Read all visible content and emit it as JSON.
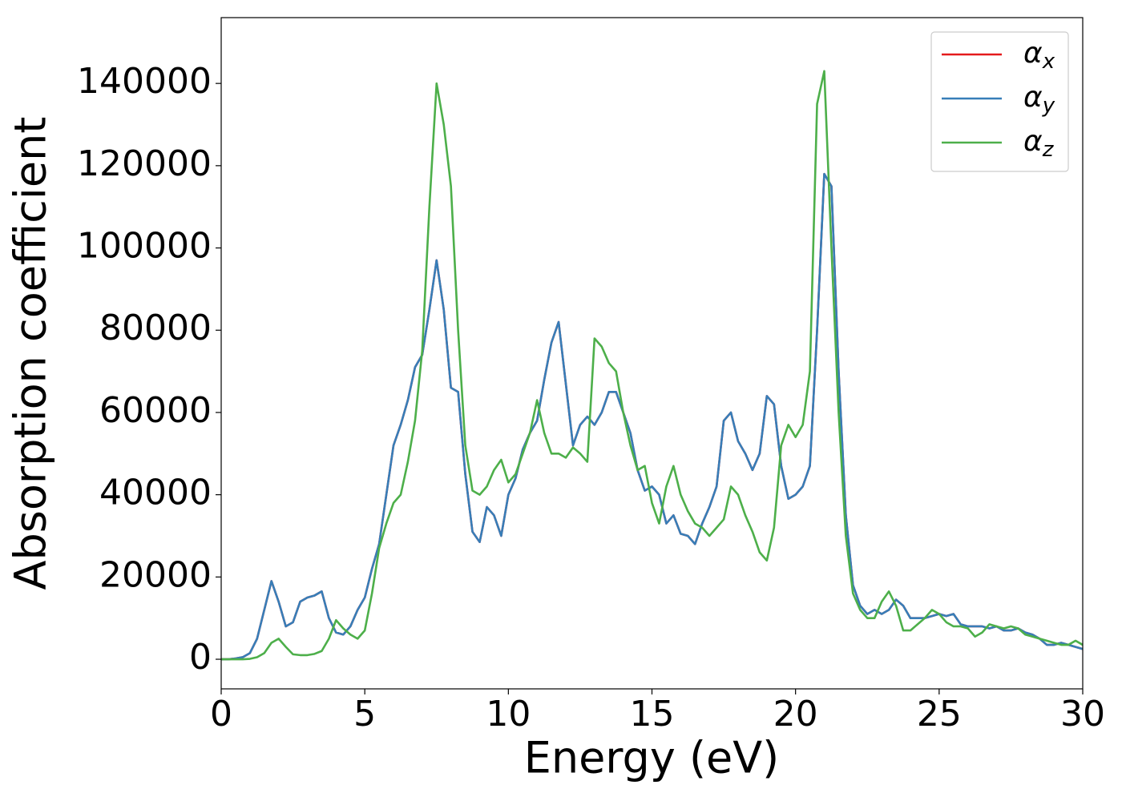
{
  "chart_data": {
    "type": "line",
    "xlabel": "Energy (eV)",
    "ylabel": "Absorption coefficient",
    "x": [
      0,
      0.25,
      0.5,
      0.75,
      1,
      1.25,
      1.5,
      1.75,
      2,
      2.25,
      2.5,
      2.75,
      3,
      3.25,
      3.5,
      3.75,
      4,
      4.25,
      4.5,
      4.75,
      5,
      5.25,
      5.5,
      5.75,
      6,
      6.25,
      6.5,
      6.75,
      7,
      7.25,
      7.5,
      7.75,
      8,
      8.25,
      8.5,
      8.75,
      9,
      9.25,
      9.5,
      9.75,
      10,
      10.25,
      10.5,
      10.75,
      11,
      11.25,
      11.5,
      11.75,
      12,
      12.25,
      12.5,
      12.75,
      13,
      13.25,
      13.5,
      13.75,
      14,
      14.25,
      14.5,
      14.75,
      15,
      15.25,
      15.5,
      15.75,
      16,
      16.25,
      16.5,
      16.75,
      17,
      17.25,
      17.5,
      17.75,
      18,
      18.25,
      18.5,
      18.75,
      19,
      19.25,
      19.5,
      19.75,
      20,
      20.25,
      20.5,
      20.75,
      21,
      21.25,
      21.5,
      21.75,
      22,
      22.25,
      22.5,
      22.75,
      23,
      23.25,
      23.5,
      23.75,
      24,
      24.25,
      24.5,
      24.75,
      25,
      25.25,
      25.5,
      25.75,
      26,
      26.25,
      26.5,
      26.75,
      27,
      27.25,
      27.5,
      27.75,
      28,
      28.25,
      28.5,
      28.75,
      29,
      29.25,
      29.5,
      29.75,
      30
    ],
    "series": [
      {
        "name": "αx",
        "color": "#e41a1c",
        "values": [
          0,
          0,
          200,
          500,
          1500,
          5000,
          12000,
          19000,
          14000,
          8000,
          9000,
          14000,
          15000,
          15500,
          16500,
          10000,
          6500,
          6000,
          8000,
          12000,
          15000,
          22000,
          28000,
          40000,
          52000,
          57000,
          63000,
          71000,
          74000,
          85000,
          97000,
          85000,
          66000,
          65000,
          45000,
          31000,
          28500,
          37000,
          35000,
          30000,
          40000,
          44000,
          51000,
          55000,
          58000,
          68000,
          77000,
          82000,
          67000,
          52000,
          57000,
          59000,
          57000,
          60000,
          65000,
          65000,
          60000,
          55000,
          46000,
          41000,
          42000,
          40000,
          33000,
          35000,
          30500,
          30000,
          28000,
          33000,
          37000,
          42000,
          58000,
          60000,
          53000,
          50000,
          46000,
          50000,
          64000,
          62000,
          47000,
          39000,
          40000,
          42000,
          47000,
          80000,
          118000,
          115000,
          70000,
          35000,
          18000,
          13000,
          11000,
          12000,
          11000,
          12000,
          14500,
          13000,
          10000,
          10000,
          10000,
          10500,
          11000,
          10500,
          11000,
          8500,
          8000,
          8000,
          8000,
          7500,
          8000,
          7000,
          7000,
          7500,
          6500,
          6000,
          5000,
          3500,
          3500,
          4000,
          3500,
          3000,
          2500
        ]
      },
      {
        "name": "αy",
        "color": "#377eb8",
        "values": [
          0,
          0,
          200,
          500,
          1500,
          5000,
          12000,
          19000,
          14000,
          8000,
          9000,
          14000,
          15000,
          15500,
          16500,
          10000,
          6500,
          6000,
          8000,
          12000,
          15000,
          22000,
          28000,
          40000,
          52000,
          57000,
          63000,
          71000,
          74000,
          85000,
          97000,
          85000,
          66000,
          65000,
          45000,
          31000,
          28500,
          37000,
          35000,
          30000,
          40000,
          44000,
          51000,
          55000,
          58000,
          68000,
          77000,
          82000,
          67000,
          52000,
          57000,
          59000,
          57000,
          60000,
          65000,
          65000,
          60000,
          55000,
          46000,
          41000,
          42000,
          40000,
          33000,
          35000,
          30500,
          30000,
          28000,
          33000,
          37000,
          42000,
          58000,
          60000,
          53000,
          50000,
          46000,
          50000,
          64000,
          62000,
          47000,
          39000,
          40000,
          42000,
          47000,
          80000,
          118000,
          115000,
          70000,
          35000,
          18000,
          13000,
          11000,
          12000,
          11000,
          12000,
          14500,
          13000,
          10000,
          10000,
          10000,
          10500,
          11000,
          10500,
          11000,
          8500,
          8000,
          8000,
          8000,
          7500,
          8000,
          7000,
          7000,
          7500,
          6500,
          6000,
          5000,
          3500,
          3500,
          4000,
          3500,
          3000,
          2500
        ]
      },
      {
        "name": "αz",
        "color": "#4daf4a",
        "values": [
          0,
          0,
          0,
          0,
          100,
          500,
          1500,
          4000,
          5000,
          3000,
          1200,
          1000,
          1000,
          1300,
          2000,
          5000,
          9500,
          7500,
          6000,
          5000,
          7000,
          16000,
          27000,
          33000,
          38000,
          40000,
          48000,
          58000,
          75000,
          110000,
          140000,
          130000,
          115000,
          80000,
          52000,
          41000,
          40000,
          42000,
          46000,
          48500,
          43000,
          45000,
          50000,
          55000,
          63000,
          55000,
          50000,
          50000,
          49000,
          51500,
          50000,
          48000,
          78000,
          76000,
          72000,
          70000,
          60000,
          52000,
          46000,
          47000,
          38000,
          33000,
          42000,
          47000,
          40000,
          36000,
          33000,
          32000,
          30000,
          32000,
          34000,
          42000,
          40000,
          35000,
          31000,
          26000,
          24000,
          32000,
          52000,
          57000,
          54000,
          57000,
          70000,
          135000,
          143000,
          100000,
          60000,
          30000,
          16000,
          12000,
          10000,
          10000,
          14000,
          16500,
          13000,
          7000,
          7000,
          8500,
          10000,
          12000,
          11000,
          9000,
          8000,
          8000,
          7500,
          5500,
          6500,
          8500,
          8000,
          7500,
          8000,
          7500,
          6000,
          5500,
          5000,
          4500,
          4000,
          3500,
          3500,
          4500,
          3500
        ]
      }
    ],
    "xlim": [
      0,
      30
    ],
    "xticks": [
      0,
      5,
      10,
      15,
      20,
      25,
      30
    ],
    "ylim": [
      -7200,
      156000
    ],
    "yticks": [
      0,
      20000,
      40000,
      60000,
      80000,
      100000,
      120000,
      140000
    ],
    "legend": "upper right"
  }
}
